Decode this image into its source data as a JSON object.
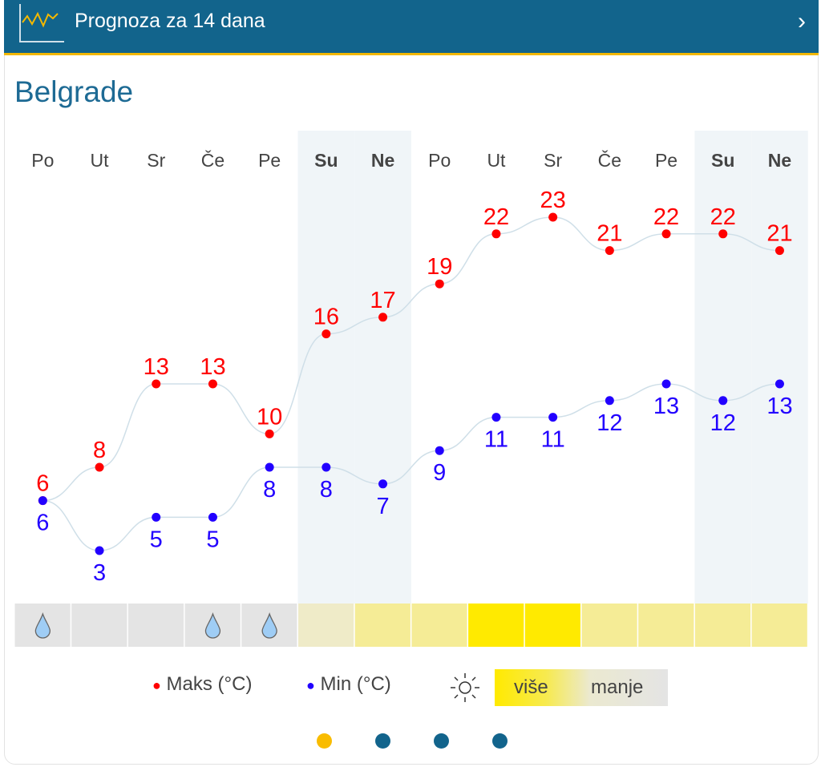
{
  "header": {
    "title": "Prognoza za 14 dana",
    "icon": "chart-line-icon",
    "chevron": "›"
  },
  "city": "Belgrade",
  "chart_data": {
    "type": "line",
    "categories": [
      "Po",
      "Ut",
      "Sr",
      "Če",
      "Pe",
      "Su",
      "Ne",
      "Po",
      "Ut",
      "Sr",
      "Če",
      "Pe",
      "Su",
      "Ne"
    ],
    "weekend": [
      false,
      false,
      false,
      false,
      false,
      true,
      true,
      false,
      false,
      false,
      false,
      false,
      true,
      true
    ],
    "series": [
      {
        "name": "Maks (°C)",
        "color": "#ff0000",
        "values": [
          6,
          8,
          13,
          13,
          10,
          16,
          17,
          19,
          22,
          23,
          21,
          22,
          22,
          21
        ]
      },
      {
        "name": "Min (°C)",
        "color": "#2200ff",
        "values": [
          6,
          3,
          5,
          5,
          8,
          8,
          7,
          9,
          11,
          11,
          12,
          13,
          12,
          13
        ]
      }
    ],
    "rain": [
      true,
      false,
      false,
      true,
      true,
      false,
      false,
      false,
      false,
      false,
      false,
      false,
      false,
      false
    ],
    "sun_level": [
      0,
      0,
      0,
      0,
      0,
      1,
      2,
      2,
      3,
      3,
      2,
      2,
      2,
      2
    ],
    "sun_colors": [
      "#e4e4e4",
      "#efebc8",
      "#f5ec96",
      "#ffea00"
    ]
  },
  "legend": {
    "max": "Maks (°C)",
    "min": "Min (°C)",
    "more": "više",
    "less": "manje"
  },
  "pager": {
    "pages": 4,
    "active": 0
  }
}
